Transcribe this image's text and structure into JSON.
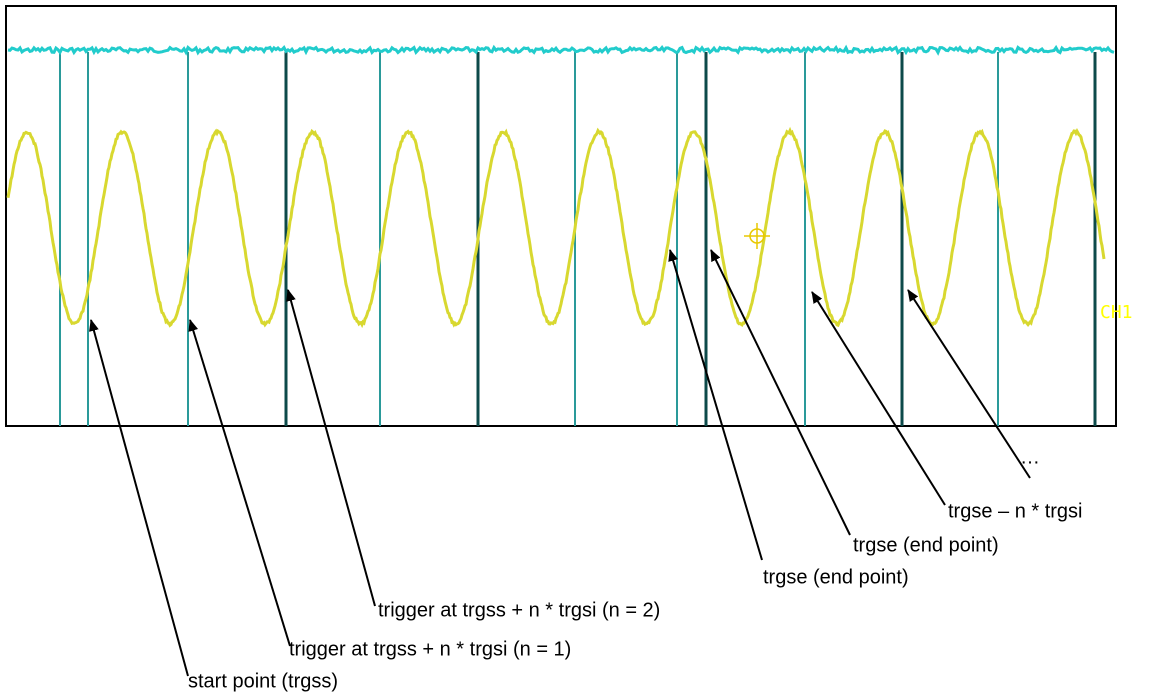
{
  "scope": {
    "channel_label": "CH1"
  },
  "annotations": [
    {
      "label": "start point (trgss)"
    },
    {
      "label": "trigger at trgss + n * trgsi (n = 1)"
    },
    {
      "label": "trigger at trgss + n * trgsi (n = 2)"
    },
    {
      "label": "trgse (end point)"
    },
    {
      "label": "trgse (end point)"
    },
    {
      "label": "trgse – n * trgsi"
    },
    {
      "label": "…"
    }
  ]
}
